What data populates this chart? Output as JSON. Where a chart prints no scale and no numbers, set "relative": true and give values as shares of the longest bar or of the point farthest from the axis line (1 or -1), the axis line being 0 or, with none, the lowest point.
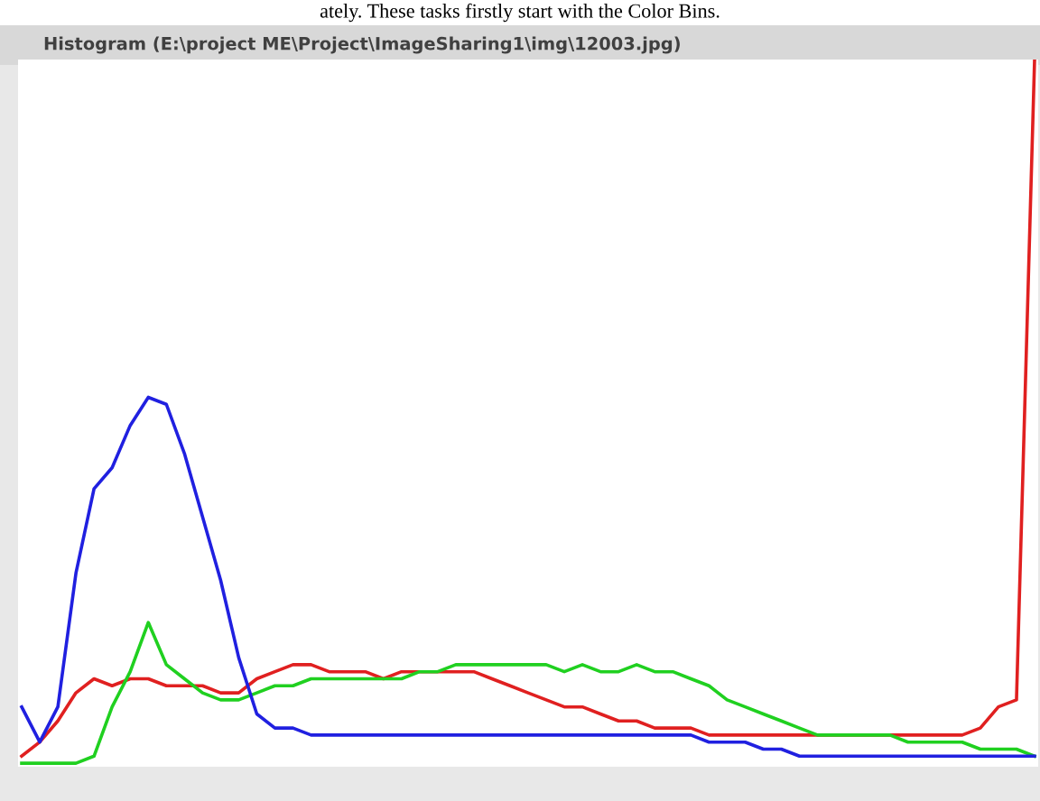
{
  "chart_data": {
    "type": "line",
    "relative": true,
    "title": "Histogram (E:\\project ME\\Project\\ImageSharing1\\img\\12003.jpg)",
    "annotations": [
      "ately. These tasks firstly start with the Color Bins."
    ],
    "categories": [
      null,
      null,
      null,
      null,
      null,
      null,
      null,
      null,
      null,
      null,
      null,
      null,
      null,
      null,
      null,
      null,
      null,
      null,
      null,
      null,
      null,
      null,
      null,
      null,
      null,
      null,
      null,
      null,
      null,
      null,
      null,
      null,
      null,
      null,
      null,
      null,
      null,
      null,
      null,
      null,
      null,
      null,
      null,
      null,
      null,
      null,
      null,
      null,
      null,
      null,
      null,
      null,
      null,
      null,
      null,
      null,
      null
    ],
    "legend": false,
    "marker": "none",
    "line_style": "solid",
    "series": [
      {
        "color": "#e02020",
        "values": [
          0.01,
          0.03,
          0.06,
          0.1,
          0.12,
          0.11,
          0.12,
          0.12,
          0.11,
          0.11,
          0.11,
          0.1,
          0.1,
          0.12,
          0.13,
          0.14,
          0.14,
          0.13,
          0.13,
          0.13,
          0.12,
          0.13,
          0.13,
          0.13,
          0.13,
          0.13,
          0.12,
          0.11,
          0.1,
          0.09,
          0.08,
          0.08,
          0.07,
          0.06,
          0.06,
          0.05,
          0.05,
          0.05,
          0.04,
          0.04,
          0.04,
          0.04,
          0.04,
          0.04,
          0.04,
          0.04,
          0.04,
          0.04,
          0.04,
          0.04,
          0.04,
          0.04,
          0.04,
          0.05,
          0.08,
          0.09,
          1
        ]
      },
      {
        "color": "#20d020",
        "values": [
          0,
          0,
          0,
          0,
          0.01,
          0.08,
          0.13,
          0.2,
          0.14,
          0.12,
          0.1,
          0.09,
          0.09,
          0.1,
          0.11,
          0.11,
          0.12,
          0.12,
          0.12,
          0.12,
          0.12,
          0.12,
          0.13,
          0.13,
          0.14,
          0.14,
          0.14,
          0.14,
          0.14,
          0.14,
          0.13,
          0.14,
          0.13,
          0.13,
          0.14,
          0.13,
          0.13,
          0.12,
          0.11,
          0.09,
          0.08,
          0.07,
          0.06,
          0.05,
          0.04,
          0.04,
          0.04,
          0.04,
          0.04,
          0.03,
          0.03,
          0.03,
          0.03,
          0.02,
          0.02,
          0.02,
          0.01
        ]
      },
      {
        "color": "#2020e0",
        "values": [
          0.08,
          0.03,
          0.08,
          0.27,
          0.39,
          0.42,
          0.48,
          0.52,
          0.51,
          0.44,
          0.35,
          0.26,
          0.15,
          0.07,
          0.05,
          0.05,
          0.04,
          0.04,
          0.04,
          0.04,
          0.04,
          0.04,
          0.04,
          0.04,
          0.04,
          0.04,
          0.04,
          0.04,
          0.04,
          0.04,
          0.04,
          0.04,
          0.04,
          0.04,
          0.04,
          0.04,
          0.04,
          0.04,
          0.03,
          0.03,
          0.03,
          0.02,
          0.02,
          0.01,
          0.01,
          0.01,
          0.01,
          0.01,
          0.01,
          0.01,
          0.01,
          0.01,
          0.01,
          0.01,
          0.01,
          0.01,
          0.01
        ]
      }
    ]
  }
}
